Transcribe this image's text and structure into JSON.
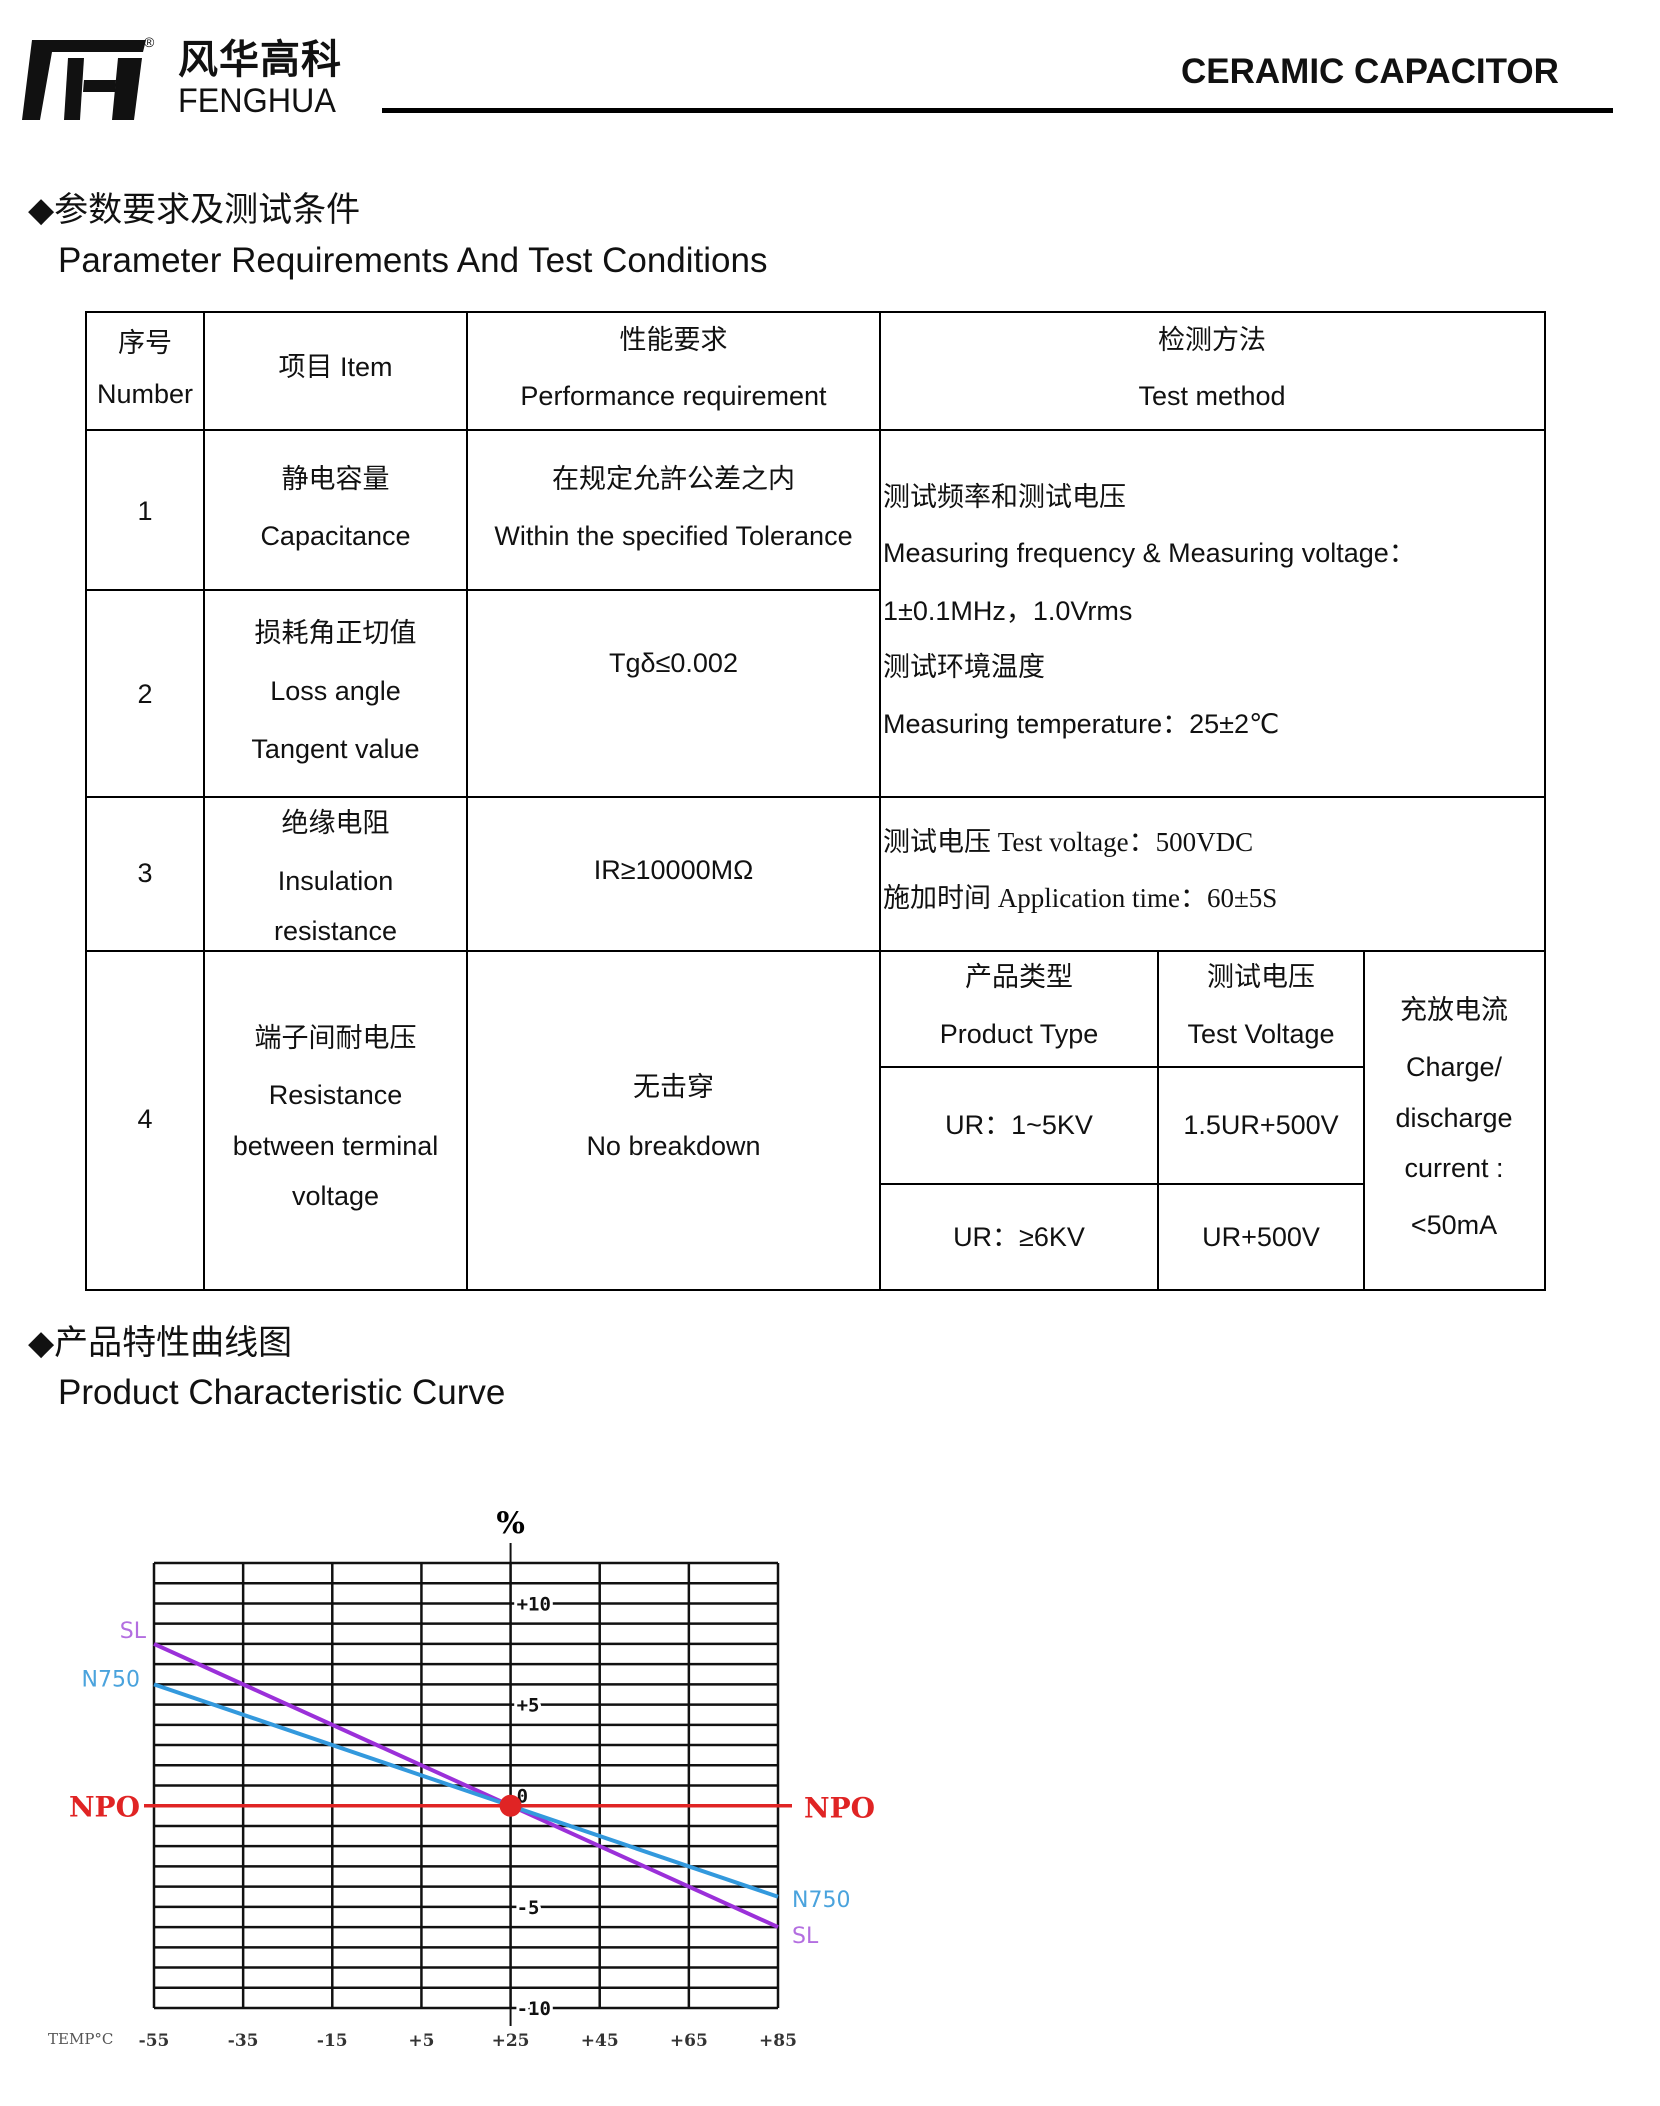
{
  "header": {
    "logo_cn": "风华高科",
    "logo_en": "FENGHUA",
    "logo_mark": "®",
    "title": "CERAMIC CAPACITOR"
  },
  "section1": {
    "bullet": "◆",
    "title_cn": "参数要求及测试条件",
    "title_en": "Parameter Requirements And Test Conditions"
  },
  "table": {
    "headers": {
      "number": [
        "序号",
        "Number"
      ],
      "item": "项目 Item",
      "performance": [
        "性能要求",
        "Performance requirement"
      ],
      "method": [
        "检测方法",
        "Test method"
      ]
    },
    "rows": [
      {
        "number": "1",
        "item": [
          "静电容量",
          "Capacitance"
        ],
        "performance": [
          "在规定允許公差之内",
          "Within the specified Tolerance"
        ]
      },
      {
        "number": "2",
        "item": [
          "损耗角正切值",
          "Loss angle",
          "Tangent value"
        ],
        "performance": [
          "Tgδ≤0.002"
        ]
      },
      {
        "number": "3",
        "item": [
          "绝缘电阻",
          "Insulation",
          "resistance"
        ],
        "performance": [
          "IR≥10000MΩ"
        ],
        "method": [
          "测试电压 Test voltage：500VDC",
          "施加时间 Application time：60±5S"
        ]
      },
      {
        "number": "4",
        "item": [
          "端子间耐电压",
          "Resistance",
          "between terminal",
          "voltage"
        ],
        "performance": [
          "无击穿",
          "No breakdown"
        ],
        "subtable": {
          "col1_header": [
            "产品类型",
            "Product Type"
          ],
          "col2_header": [
            "测试电压",
            "Test Voltage"
          ],
          "rows": [
            {
              "type": "UR：1~5KV",
              "voltage": "1.5UR+500V"
            },
            {
              "type": "UR：≥6KV",
              "voltage": "UR+500V"
            }
          ],
          "current": [
            "充放电流",
            "Charge/",
            "discharge",
            "current :",
            "<50mA"
          ]
        }
      }
    ],
    "method_rows_1_2": [
      "测试频率和测试电压",
      "Measuring frequency & Measuring voltage：",
      "1±0.1MHz，1.0Vrms",
      "测试环境温度",
      "Measuring temperature：25±2℃"
    ]
  },
  "section2": {
    "bullet": "◆",
    "title_cn": "产品特性曲线图",
    "title_en": "Product Characteristic Curve"
  },
  "chart_data": {
    "type": "line",
    "ylabel": "%",
    "xlabel": "TEMP°C",
    "x_ticks": [
      "-55",
      "-35",
      "-15",
      "+5",
      "+25",
      "+45",
      "+65",
      "+85"
    ],
    "y_ticks": [
      "+10",
      "+5",
      "0",
      "-5",
      "-10"
    ],
    "xlim": [
      -55,
      85
    ],
    "ylim": [
      -10,
      12
    ],
    "grid": true,
    "series": [
      {
        "name": "SL",
        "color": "#9b30d9",
        "x": [
          -55,
          25,
          85
        ],
        "y": [
          8,
          0,
          -6
        ]
      },
      {
        "name": "N750",
        "color": "#3399dd",
        "x": [
          -55,
          25,
          85
        ],
        "y": [
          6,
          0,
          -4.5
        ]
      },
      {
        "name": "NPO",
        "color": "#e02424",
        "x": [
          -55,
          25,
          85
        ],
        "y": [
          0,
          0,
          0
        ]
      }
    ]
  }
}
